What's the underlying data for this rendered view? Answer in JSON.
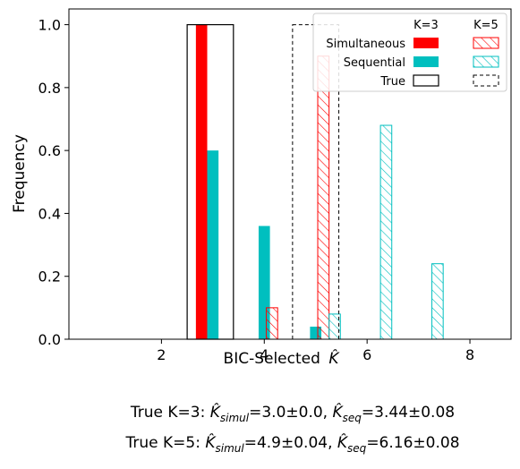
{
  "chart_data": {
    "type": "bar",
    "xlabel": "BIC-Selected",
    "xlabel_symbol": "K̂",
    "ylabel": "Frequency",
    "xlim": [
      0.2,
      8.8
    ],
    "ylim": [
      0,
      1.05
    ],
    "xticks": [
      "2",
      "4",
      "6",
      "8"
    ],
    "yticks": [
      "0.0",
      "0.2",
      "0.4",
      "0.6",
      "0.8",
      "1.0"
    ],
    "grid": false,
    "legend": {
      "placement": "top-right",
      "column_headers": [
        "K=3",
        "K=5"
      ],
      "rows": [
        "Simultaneous",
        "Sequential",
        "True"
      ]
    },
    "colors": {
      "simultaneous": "#ff0000",
      "sequential": "#00bfbf",
      "true": "#000000"
    },
    "series": [
      {
        "name": "Simultaneous",
        "k": "K=3",
        "style": "solid",
        "color": "#ff0000",
        "points": [
          {
            "x": 3,
            "y": 1.0
          }
        ]
      },
      {
        "name": "Sequential",
        "k": "K=3",
        "style": "solid",
        "color": "#00bfbf",
        "points": [
          {
            "x": 3,
            "y": 0.6
          },
          {
            "x": 4,
            "y": 0.36
          },
          {
            "x": 5,
            "y": 0.04
          }
        ]
      },
      {
        "name": "True",
        "k": "K=3",
        "style": "outline",
        "color": "#000000",
        "points": [
          {
            "x": 3,
            "y": 1.0
          }
        ]
      },
      {
        "name": "Simultaneous",
        "k": "K=5",
        "style": "hatched",
        "color": "#ff0000",
        "points": [
          {
            "x": 4,
            "y": 0.1
          },
          {
            "x": 5,
            "y": 0.9
          }
        ]
      },
      {
        "name": "Sequential",
        "k": "K=5",
        "style": "hatched",
        "color": "#00bfbf",
        "points": [
          {
            "x": 5,
            "y": 0.08
          },
          {
            "x": 6,
            "y": 0.68
          },
          {
            "x": 7,
            "y": 0.24
          }
        ]
      },
      {
        "name": "True",
        "k": "K=5",
        "style": "dashed-outline",
        "color": "#000000",
        "points": [
          {
            "x": 5,
            "y": 1.0
          }
        ]
      }
    ],
    "captions": [
      {
        "prefix": "True K=3: ",
        "sym1": "K̂",
        "sub1": "simul",
        "val1": "=3.0±0.0, ",
        "sym2": "K̂",
        "sub2": "seq",
        "val2": "=3.44±0.08"
      },
      {
        "prefix": "True K=5: ",
        "sym1": "K̂",
        "sub1": "simul",
        "val1": "=4.9±0.04, ",
        "sym2": "K̂",
        "sub2": "seq",
        "val2": "=6.16±0.08"
      }
    ]
  }
}
